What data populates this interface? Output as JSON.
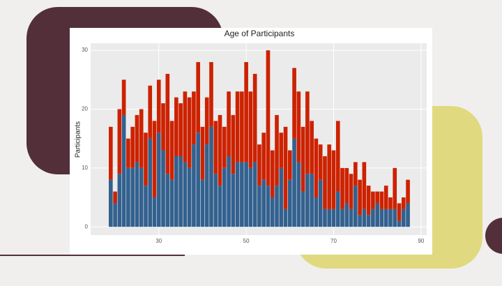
{
  "chart_data": {
    "type": "bar",
    "stacked": true,
    "title": "Age of Participants",
    "y_label": "Participants",
    "x": [
      19,
      20,
      21,
      22,
      23,
      24,
      25,
      26,
      27,
      28,
      29,
      30,
      31,
      32,
      33,
      34,
      35,
      36,
      37,
      38,
      39,
      40,
      41,
      42,
      43,
      44,
      45,
      46,
      47,
      48,
      49,
      50,
      51,
      52,
      53,
      54,
      55,
      56,
      57,
      58,
      59,
      60,
      61,
      62,
      63,
      64,
      65,
      66,
      67,
      68,
      69,
      70,
      71,
      72,
      73,
      74,
      75,
      76,
      77,
      78,
      79,
      80,
      81,
      82,
      83,
      84,
      85,
      86,
      87
    ],
    "series": [
      {
        "color": "#33618f",
        "values": [
          8,
          4,
          9,
          19,
          10,
          10,
          11,
          10,
          7,
          15,
          5,
          16,
          13,
          9,
          8,
          12,
          12,
          11,
          10,
          14,
          16,
          8,
          14,
          17,
          9,
          7,
          10,
          12,
          9,
          11,
          11,
          11,
          10,
          11,
          7,
          8,
          7,
          5,
          7,
          10,
          3,
          8,
          15,
          11,
          6,
          9,
          9,
          5,
          8,
          3,
          3,
          3,
          6,
          3,
          4,
          3,
          7,
          2,
          3,
          2,
          3,
          4,
          3,
          3,
          3,
          3,
          1,
          3,
          4
        ]
      },
      {
        "color": "#cc2200",
        "values": [
          9,
          2,
          11,
          6,
          5,
          7,
          8,
          10,
          9,
          9,
          13,
          9,
          8,
          17,
          10,
          10,
          9,
          12,
          12,
          9,
          12,
          9,
          8,
          11,
          9,
          12,
          7,
          11,
          10,
          12,
          12,
          17,
          13,
          15,
          7,
          8,
          23,
          8,
          12,
          6,
          14,
          5,
          12,
          12,
          11,
          14,
          9,
          10,
          6,
          9,
          11,
          10,
          12,
          7,
          6,
          6,
          4,
          6,
          8,
          5,
          3,
          2,
          3,
          4,
          2,
          7,
          3,
          2,
          4
        ]
      }
    ],
    "xlim": [
      14.4,
      91.3
    ],
    "ylim": [
      -1.4,
      31.2
    ],
    "xticks": [
      30,
      50,
      70,
      90
    ],
    "yticks": [
      0,
      10,
      20,
      30
    ],
    "grid": true
  }
}
